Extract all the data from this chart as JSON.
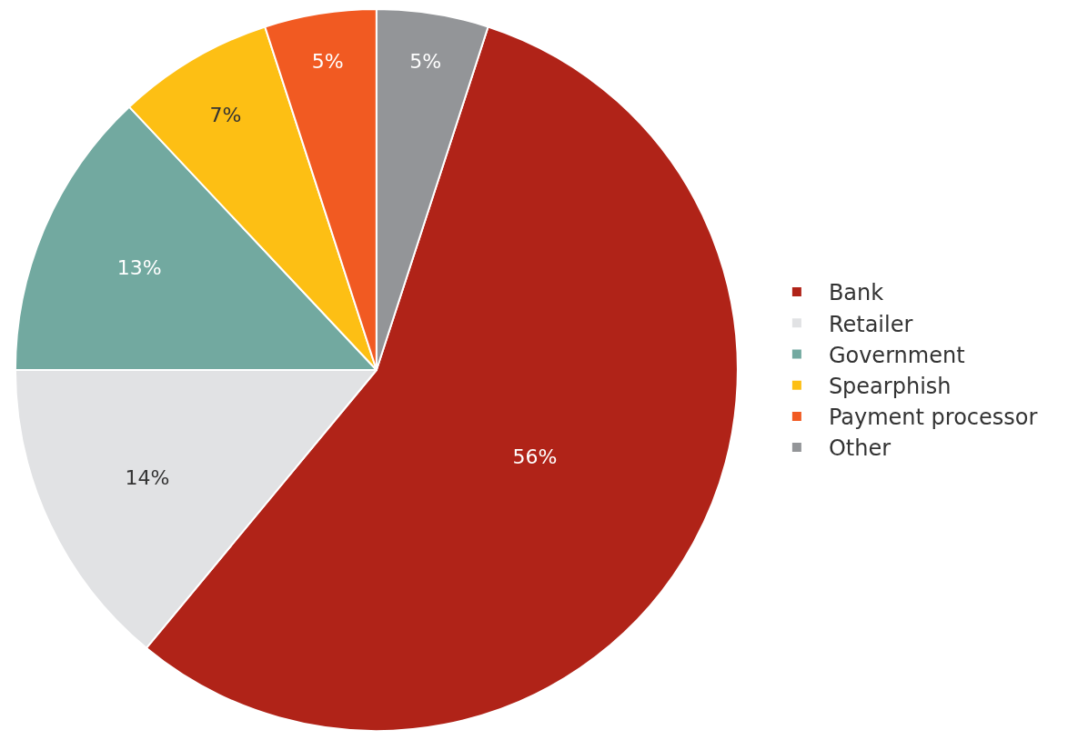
{
  "chart_data": {
    "type": "pie",
    "categories": [
      "Bank",
      "Retailer",
      "Government",
      "Spearphish",
      "Payment processor",
      "Other"
    ],
    "values": [
      56,
      14,
      13,
      7,
      5,
      5
    ],
    "colors": [
      "#b02318",
      "#e1e2e4",
      "#72a9a0",
      "#fdbf14",
      "#f15a22",
      "#939598"
    ],
    "value_labels": [
      "56%",
      "14%",
      "13%",
      "7%",
      "5%",
      "5%"
    ],
    "legend": "right"
  }
}
